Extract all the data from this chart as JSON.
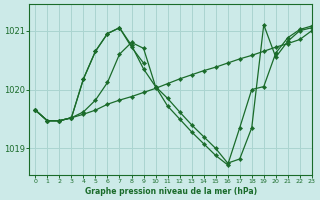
{
  "title": "Graphe pression niveau de la mer (hPa)",
  "background_color": "#cceae8",
  "grid_color": "#aad4d0",
  "line_color": "#1a6b2a",
  "xlim": [
    -0.5,
    23
  ],
  "ylim": [
    1018.55,
    1021.45
  ],
  "yticks": [
    1019,
    1020,
    1021
  ],
  "xticks": [
    0,
    1,
    2,
    3,
    4,
    5,
    6,
    7,
    8,
    9,
    10,
    11,
    12,
    13,
    14,
    15,
    16,
    17,
    18,
    19,
    20,
    21,
    22,
    23
  ],
  "series": [
    {
      "x": [
        0,
        1,
        2,
        3,
        4,
        5,
        6,
        7,
        8,
        9,
        10,
        11,
        12,
        13,
        14,
        15,
        16,
        17,
        18,
        19,
        20,
        21,
        22,
        23
      ],
      "y": [
        1019.65,
        1019.47,
        1019.47,
        1019.52,
        1019.58,
        1019.65,
        1019.75,
        1019.82,
        1019.88,
        1019.95,
        1020.02,
        1020.1,
        1020.18,
        1020.25,
        1020.32,
        1020.38,
        1020.45,
        1020.52,
        1020.58,
        1020.65,
        1020.72,
        1020.78,
        1020.85,
        1021.0
      ]
    },
    {
      "x": [
        0,
        1,
        2,
        3,
        4,
        5,
        6,
        7,
        8,
        9,
        10,
        11,
        12,
        13,
        14,
        15,
        16,
        17,
        18,
        19,
        20,
        21,
        22,
        23
      ],
      "y": [
        1019.65,
        1019.47,
        1019.47,
        1019.52,
        1019.62,
        1019.82,
        1020.12,
        1020.6,
        1020.8,
        1020.7,
        1020.05,
        1019.85,
        1019.62,
        1019.4,
        1019.2,
        1019.0,
        1018.75,
        1018.82,
        1019.35,
        1021.1,
        1020.55,
        1020.82,
        1021.0,
        1021.05
      ]
    },
    {
      "x": [
        0,
        1,
        2,
        3,
        4,
        5,
        6,
        7,
        8,
        9,
        10,
        11,
        12,
        13,
        14,
        15,
        16,
        17,
        18,
        19,
        20,
        21,
        22,
        23
      ],
      "y": [
        1019.65,
        1019.47,
        1019.47,
        1019.52,
        1020.18,
        1020.65,
        1020.95,
        1021.05,
        1020.75,
        1020.35,
        1020.05,
        1019.72,
        1019.5,
        1019.28,
        1019.08,
        1018.88,
        1018.72,
        1019.35,
        1020.0,
        1020.05,
        1020.62,
        1020.88,
        1021.02,
        1021.08
      ]
    },
    {
      "x": [
        0,
        1,
        2,
        3,
        4,
        5,
        6,
        7,
        8,
        9
      ],
      "y": [
        1019.65,
        1019.47,
        1019.47,
        1019.52,
        1020.18,
        1020.65,
        1020.95,
        1021.05,
        1020.72,
        1020.45
      ]
    }
  ]
}
